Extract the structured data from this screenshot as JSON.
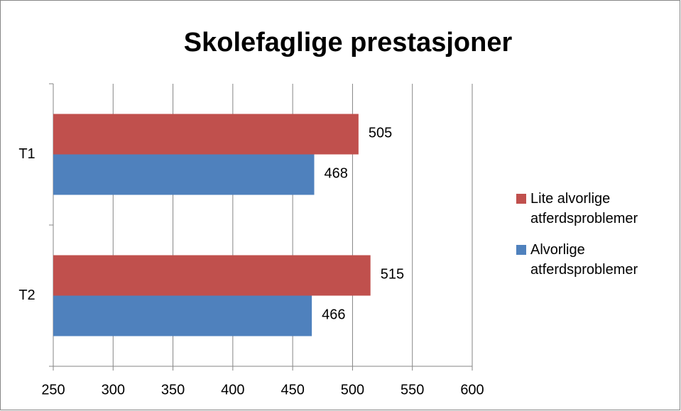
{
  "chart_data": {
    "type": "bar",
    "orientation": "horizontal",
    "title": "Skolefaglige prestasjoner",
    "categories": [
      "T1",
      "T2"
    ],
    "series": [
      {
        "name": "Lite alvorlige atferdsproblemer",
        "color": "#c0504d",
        "values": [
          505,
          515
        ]
      },
      {
        "name": "Alvorlige atferdsproblemer",
        "color": "#4f81bd",
        "values": [
          468,
          466
        ]
      }
    ],
    "xlim": [
      250,
      600
    ],
    "xticks": [
      250,
      300,
      350,
      400,
      450,
      500,
      550,
      600
    ],
    "grid": true,
    "legend": "right"
  }
}
